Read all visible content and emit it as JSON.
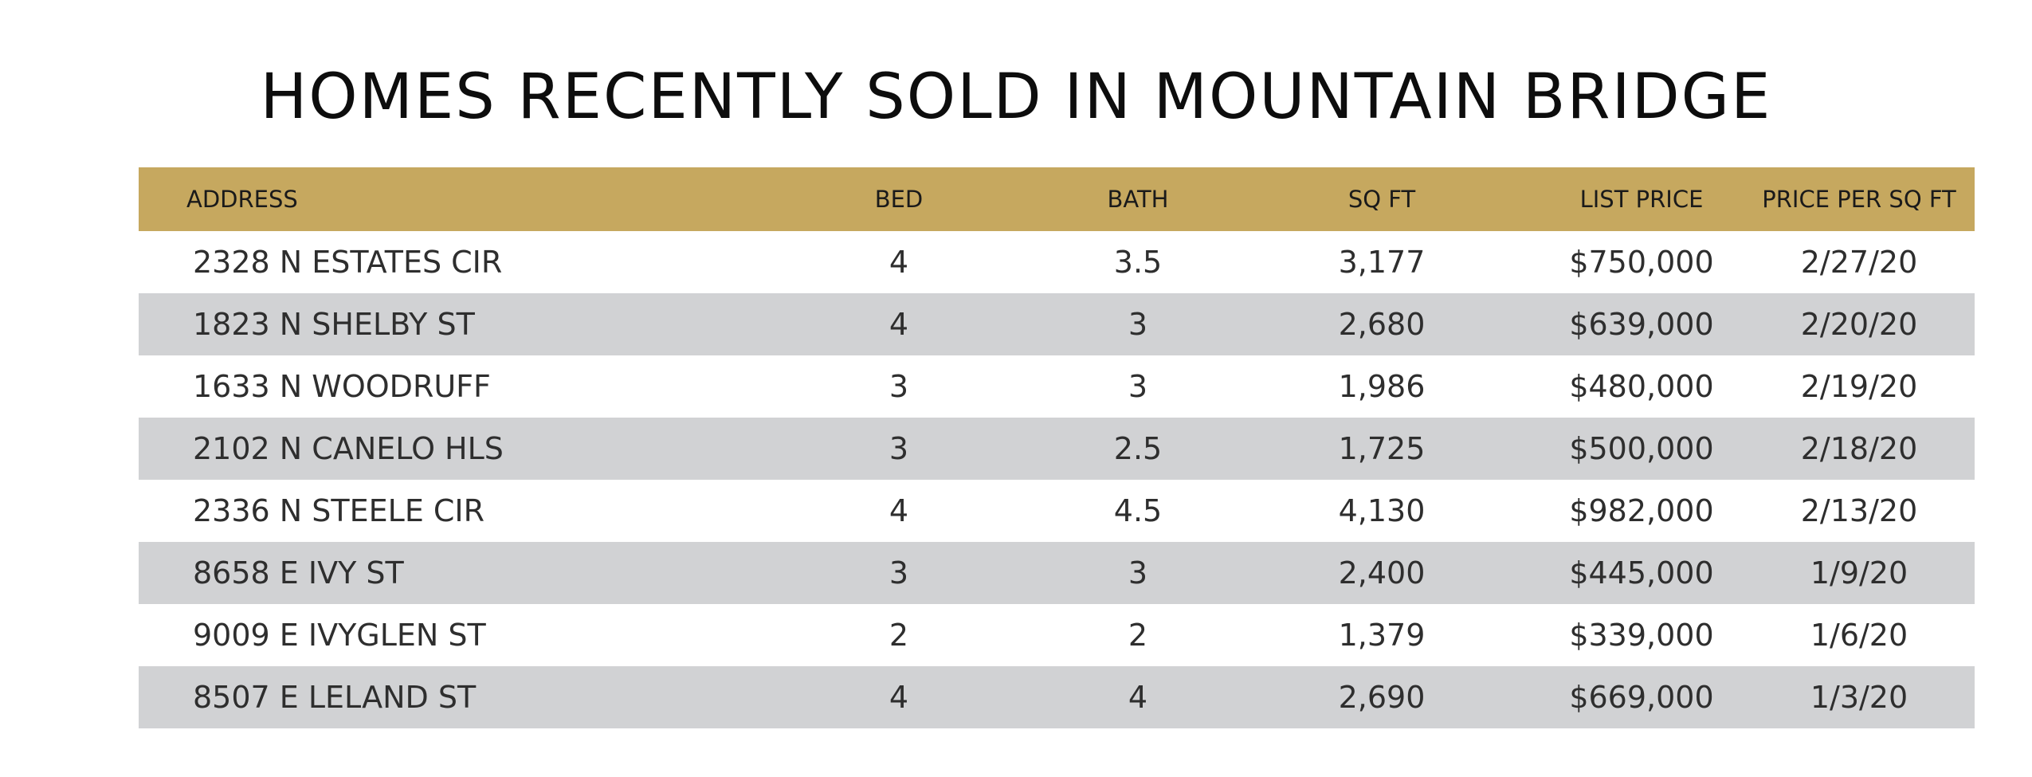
{
  "title": "HOMES RECENTLY SOLD IN MOUNTAIN BRIDGE",
  "colors": {
    "header_bg": "#c6a85f",
    "shaded_row_bg": "#d1d2d4",
    "text": "#2e2e2e"
  },
  "table": {
    "headers": {
      "address": "ADDRESS",
      "bed": "BED",
      "bath": "BATH",
      "sqft": "SQ FT",
      "list_price": "LIST PRICE",
      "price_per_sqft": "PRICE PER SQ FT"
    },
    "rows": [
      {
        "address": "2328 N ESTATES CIR",
        "bed": "4",
        "bath": "3.5",
        "sqft": "3,177",
        "list_price": "$750,000",
        "price_per_sqft": "2/27/20"
      },
      {
        "address": "1823 N SHELBY ST",
        "bed": "4",
        "bath": "3",
        "sqft": "2,680",
        "list_price": "$639,000",
        "price_per_sqft": "2/20/20"
      },
      {
        "address": "1633 N WOODRUFF",
        "bed": "3",
        "bath": "3",
        "sqft": "1,986",
        "list_price": "$480,000",
        "price_per_sqft": "2/19/20"
      },
      {
        "address": "2102 N CANELO HLS",
        "bed": "3",
        "bath": "2.5",
        "sqft": "1,725",
        "list_price": "$500,000",
        "price_per_sqft": "2/18/20"
      },
      {
        "address": "2336 N STEELE CIR",
        "bed": "4",
        "bath": "4.5",
        "sqft": "4,130",
        "list_price": "$982,000",
        "price_per_sqft": "2/13/20"
      },
      {
        "address": "8658 E IVY ST",
        "bed": "3",
        "bath": "3",
        "sqft": "2,400",
        "list_price": "$445,000",
        "price_per_sqft": "1/9/20"
      },
      {
        "address": "9009 E IVYGLEN ST",
        "bed": "2",
        "bath": "2",
        "sqft": "1,379",
        "list_price": "$339,000",
        "price_per_sqft": "1/6/20"
      },
      {
        "address": "8507 E LELAND ST",
        "bed": "4",
        "bath": "4",
        "sqft": "2,690",
        "list_price": "$669,000",
        "price_per_sqft": "1/3/20"
      }
    ]
  }
}
